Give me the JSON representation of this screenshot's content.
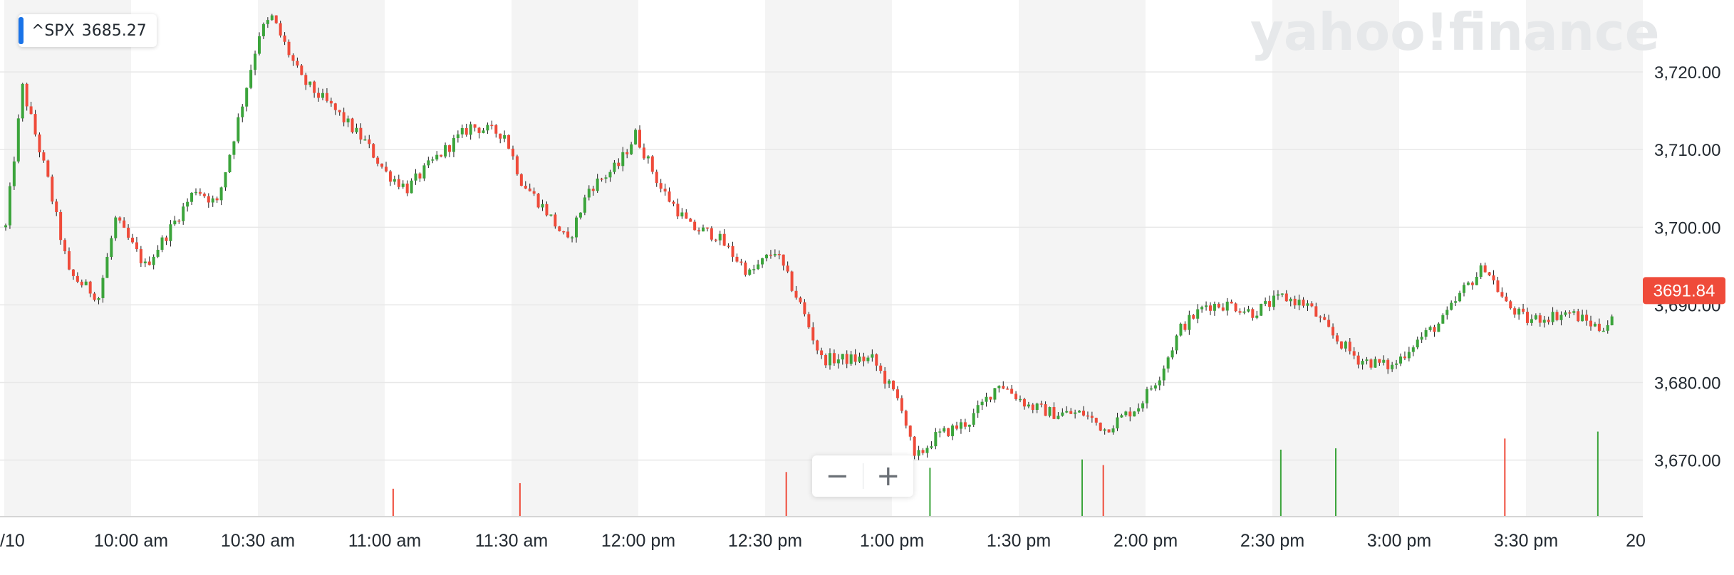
{
  "ticker": {
    "symbol": "^SPX",
    "price": "3685.27",
    "accent": "#1a73e8"
  },
  "watermark": "yahoo!finance",
  "last_price_badge": {
    "text": "3691.84",
    "color": "#ef4b3a"
  },
  "zoom": {
    "out_label": "−",
    "in_label": "+"
  },
  "colors": {
    "up": "#3ba43b",
    "down": "#ef4b3a",
    "wick": "#1c1c1c",
    "band": "#f4f4f4",
    "grid": "#e8e8e8"
  },
  "chart_data": {
    "type": "candlestick",
    "session": "intraday, 1-minute bars",
    "x_ticks": [
      "/10",
      "10:00 am",
      "10:30 am",
      "11:00 am",
      "11:30 am",
      "12:00 pm",
      "12:30 pm",
      "1:00 pm",
      "1:30 pm",
      "2:00 pm",
      "2:30 pm",
      "3:00 pm",
      "3:30 pm",
      "20"
    ],
    "y_ticks": [
      "3,670.00",
      "3,680.00",
      "3,690.00",
      "3,700.00",
      "3,710.00",
      "3,720.00"
    ],
    "ylim": [
      3664,
      3729
    ],
    "last_price": 3691.84,
    "price_path": [
      [
        "9:30",
        3700
      ],
      [
        "9:34",
        3718
      ],
      [
        "9:40",
        3706
      ],
      [
        "9:45",
        3694
      ],
      [
        "9:52",
        3691
      ],
      [
        "9:56",
        3701
      ],
      [
        "10:03",
        3695
      ],
      [
        "10:08",
        3699
      ],
      [
        "10:15",
        3705
      ],
      [
        "10:20",
        3703
      ],
      [
        "10:26",
        3716
      ],
      [
        "10:30",
        3725
      ],
      [
        "10:33",
        3727
      ],
      [
        "10:40",
        3719
      ],
      [
        "10:48",
        3715
      ],
      [
        "10:55",
        3711
      ],
      [
        "11:00",
        3707
      ],
      [
        "11:05",
        3705
      ],
      [
        "11:12",
        3709
      ],
      [
        "11:20",
        3713
      ],
      [
        "11:28",
        3712
      ],
      [
        "11:32",
        3706
      ],
      [
        "11:38",
        3702
      ],
      [
        "11:43",
        3698
      ],
      [
        "11:48",
        3705
      ],
      [
        "11:55",
        3708
      ],
      [
        "11:59",
        3712
      ],
      [
        "12:05",
        3705
      ],
      [
        "12:12",
        3700
      ],
      [
        "12:18",
        3699
      ],
      [
        "12:26",
        3694
      ],
      [
        "12:32",
        3697
      ],
      [
        "12:38",
        3690
      ],
      [
        "12:43",
        3683
      ],
      [
        "12:48",
        3683
      ],
      [
        "12:55",
        3683
      ],
      [
        "13:02",
        3677
      ],
      [
        "13:05",
        3670
      ],
      [
        "13:10",
        3673
      ],
      [
        "13:18",
        3675
      ],
      [
        "13:25",
        3680
      ],
      [
        "13:32",
        3677
      ],
      [
        "13:38",
        3676
      ],
      [
        "13:45",
        3676
      ],
      [
        "13:50",
        3674
      ],
      [
        "13:58",
        3677
      ],
      [
        "14:03",
        3681
      ],
      [
        "14:08",
        3687
      ],
      [
        "14:14",
        3690
      ],
      [
        "14:20",
        3690
      ],
      [
        "14:25",
        3689
      ],
      [
        "14:32",
        3691
      ],
      [
        "14:38",
        3690
      ],
      [
        "14:44",
        3686
      ],
      [
        "14:50",
        3683
      ],
      [
        "14:58",
        3682
      ],
      [
        "15:03",
        3685
      ],
      [
        "15:10",
        3688
      ],
      [
        "15:15",
        3692
      ],
      [
        "15:20",
        3695
      ],
      [
        "15:25",
        3690
      ],
      [
        "15:30",
        3688
      ],
      [
        "15:40",
        3689
      ],
      [
        "15:47",
        3687
      ],
      [
        "15:50",
        3688
      ]
    ],
    "volume_spikes": [
      {
        "time": "11:02",
        "direction": "down",
        "level": 0.2
      },
      {
        "time": "11:32",
        "direction": "down",
        "level": 0.24
      },
      {
        "time": "12:35",
        "direction": "down",
        "level": 0.32
      },
      {
        "time": "13:09",
        "direction": "up",
        "level": 0.35
      },
      {
        "time": "13:45",
        "direction": "up",
        "level": 0.41
      },
      {
        "time": "13:50",
        "direction": "down",
        "level": 0.37
      },
      {
        "time": "14:32",
        "direction": "up",
        "level": 0.48
      },
      {
        "time": "14:45",
        "direction": "up",
        "level": 0.49
      },
      {
        "time": "15:25",
        "direction": "down",
        "level": 0.56
      },
      {
        "time": "15:47",
        "direction": "up",
        "level": 0.61
      }
    ]
  }
}
